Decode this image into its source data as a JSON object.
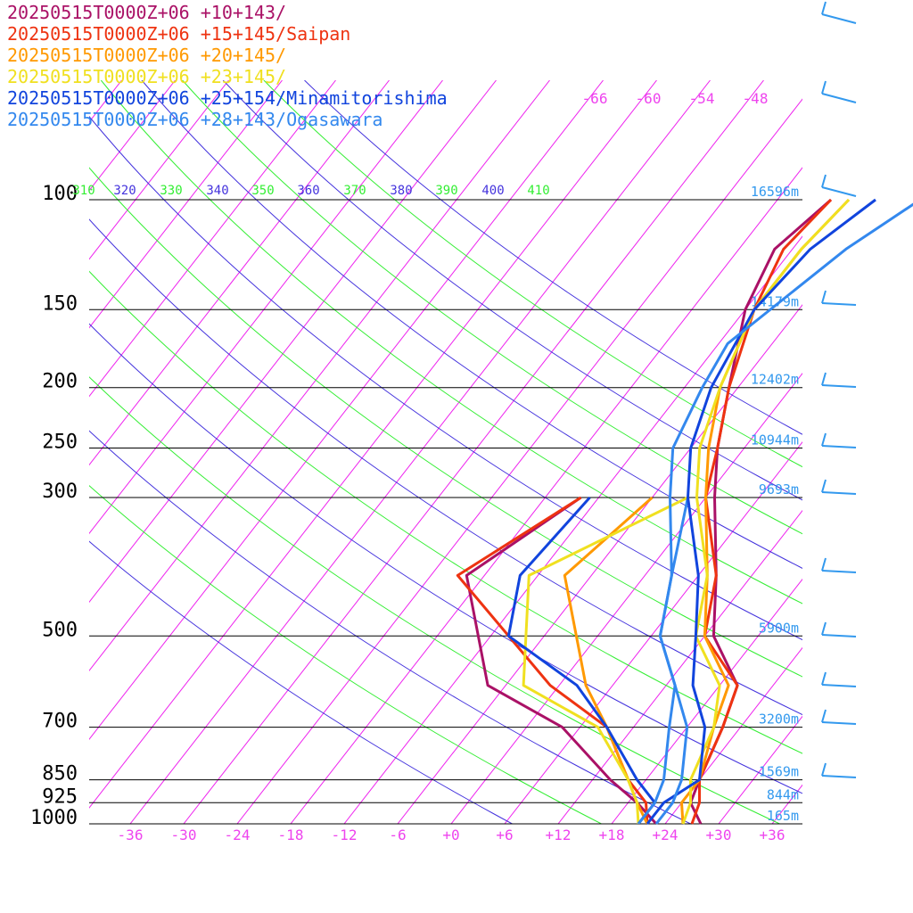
{
  "chart_data": {
    "type": "line",
    "chart_kind": "skew-T log-p sounding",
    "pressure_levels_hpa": [
      100,
      150,
      200,
      250,
      300,
      500,
      700,
      850,
      925,
      1000
    ],
    "pressure_labels": [
      "100",
      "150",
      "200",
      "250",
      "300",
      "500",
      "700",
      "850",
      "925",
      "1000"
    ],
    "height_labels": [
      {
        "p": 100,
        "label": "16596m"
      },
      {
        "p": 150,
        "label": "14179m"
      },
      {
        "p": 200,
        "label": "12402m"
      },
      {
        "p": 250,
        "label": "10944m"
      },
      {
        "p": 300,
        "label": "9693m"
      },
      {
        "p": 500,
        "label": "5900m"
      },
      {
        "p": 700,
        "label": "3200m"
      },
      {
        "p": 850,
        "label": "1569m"
      },
      {
        "p": 925,
        "label": "844m"
      },
      {
        "p": 1000,
        "label": "165m"
      }
    ],
    "temperature_ticks": [
      "-36",
      "-30",
      "-24",
      "-18",
      "-12",
      "-6",
      "+0",
      "+6",
      "+12",
      "+18",
      "+24",
      "+30",
      "+36"
    ],
    "temperature_tick_values": [
      -36,
      -30,
      -24,
      -18,
      -12,
      -6,
      0,
      6,
      12,
      18,
      24,
      30,
      36
    ],
    "isotherm_top_labels": [
      "-66",
      "-60",
      "-54",
      "-48"
    ],
    "theta_e_labels": [
      "310",
      "320",
      "330",
      "340",
      "350",
      "360",
      "370",
      "380",
      "390",
      "400",
      "410"
    ],
    "colors": {
      "isotherm": "#ee22ee",
      "theta_green": "#33ee33",
      "theta_blue": "#4433dd",
      "isobar": "#000000",
      "height_label": "#3399ee",
      "wind_barb": "#3399ee",
      "tick_label": "#ee44ee"
    },
    "series": [
      {
        "name": "20250515T0000Z+06 +10+143/",
        "color": "#aa1166",
        "temperature": [
          [
            -12,
            100
          ],
          [
            -14,
            120
          ],
          [
            -12,
            150
          ],
          [
            -7,
            200
          ],
          [
            -3,
            250
          ],
          [
            1,
            300
          ],
          [
            8,
            400
          ],
          [
            13,
            500
          ],
          [
            20,
            600
          ],
          [
            22,
            700
          ],
          [
            24,
            850
          ],
          [
            25,
            925
          ],
          [
            28,
            1000
          ]
        ],
        "dewpoint": [
          [
            -14,
            300
          ],
          [
            -20,
            400
          ],
          [
            -8,
            600
          ],
          [
            4,
            700
          ],
          [
            14,
            850
          ],
          [
            19,
            925
          ],
          [
            23,
            1000
          ]
        ]
      },
      {
        "name": "20250515T0000Z+06 +15+145/Saipan",
        "color": "#ee3311",
        "temperature": [
          [
            -12,
            100
          ],
          [
            -13,
            120
          ],
          [
            -11,
            150
          ],
          [
            -7,
            200
          ],
          [
            -3,
            250
          ],
          [
            0,
            300
          ],
          [
            8,
            400
          ],
          [
            12,
            500
          ],
          [
            20,
            600
          ],
          [
            22,
            700
          ],
          [
            24,
            850
          ],
          [
            26,
            925
          ],
          [
            27,
            1000
          ]
        ],
        "dewpoint": [
          [
            -14,
            300
          ],
          [
            -21,
            400
          ],
          [
            -1,
            600
          ],
          [
            9,
            700
          ],
          [
            16,
            850
          ],
          [
            20,
            925
          ],
          [
            22,
            1000
          ]
        ]
      },
      {
        "name": "20250515T0000Z+06 +20+145/",
        "color": "#ff9900",
        "temperature": [
          [
            -10,
            100
          ],
          [
            -11,
            120
          ],
          [
            -11,
            150
          ],
          [
            -8,
            200
          ],
          [
            -4,
            250
          ],
          [
            0,
            300
          ],
          [
            7,
            400
          ],
          [
            12,
            500
          ],
          [
            19,
            600
          ],
          [
            21,
            700
          ],
          [
            24,
            850
          ],
          [
            24,
            925
          ],
          [
            26,
            1000
          ]
        ],
        "dewpoint": [
          [
            -6,
            300
          ],
          [
            -9,
            400
          ],
          [
            3,
            600
          ],
          [
            9,
            700
          ],
          [
            16,
            850
          ],
          [
            19,
            925
          ],
          [
            22,
            1000
          ]
        ]
      },
      {
        "name": "20250515T0000Z+06 +23+145/",
        "color": "#f0e020",
        "temperature": [
          [
            -10,
            100
          ],
          [
            -11,
            120
          ],
          [
            -11,
            150
          ],
          [
            -8,
            200
          ],
          [
            -5,
            250
          ],
          [
            -1,
            300
          ],
          [
            7,
            400
          ],
          [
            11,
            500
          ],
          [
            18,
            600
          ],
          [
            21,
            700
          ],
          [
            23,
            850
          ],
          [
            25,
            925
          ],
          [
            26,
            1000
          ]
        ],
        "dewpoint": [
          [
            -2,
            300
          ],
          [
            -13,
            400
          ],
          [
            -4,
            600
          ],
          [
            8,
            700
          ],
          [
            16,
            850
          ],
          [
            19,
            925
          ],
          [
            21,
            1000
          ]
        ]
      },
      {
        "name": "20250515T0000Z+06 +25+154/Minamitorishima",
        "color": "#1144dd",
        "temperature": [
          [
            -7,
            100
          ],
          [
            -10,
            120
          ],
          [
            -11,
            150
          ],
          [
            -9,
            200
          ],
          [
            -6,
            250
          ],
          [
            -2,
            300
          ],
          [
            6,
            400
          ],
          [
            11,
            500
          ],
          [
            15,
            600
          ],
          [
            20,
            700
          ],
          [
            24,
            850
          ],
          [
            22,
            925
          ],
          [
            22,
            1000
          ]
        ],
        "dewpoint": [
          [
            -13,
            300
          ],
          [
            -14,
            400
          ],
          [
            -10,
            500
          ],
          [
            2,
            600
          ],
          [
            9,
            700
          ],
          [
            17,
            850
          ],
          [
            21,
            925
          ],
          [
            21,
            1000
          ]
        ]
      },
      {
        "name": "20250515T0000Z+06 +28+143/Ogasawara",
        "color": "#3388ee",
        "temperature": [
          [
            -2,
            100
          ],
          [
            -6,
            120
          ],
          [
            -11,
            170
          ],
          [
            -10,
            200
          ],
          [
            -8,
            250
          ],
          [
            -4,
            300
          ],
          [
            3,
            400
          ],
          [
            7,
            500
          ],
          [
            13,
            600
          ],
          [
            18,
            700
          ],
          [
            22,
            850
          ],
          [
            23,
            925
          ],
          [
            23,
            1000
          ]
        ],
        "dewpoint": [
          [
            -2,
            300
          ],
          [
            3,
            400
          ],
          [
            7,
            500
          ],
          [
            13,
            600
          ],
          [
            16,
            700
          ],
          [
            20,
            850
          ],
          [
            21,
            925
          ],
          [
            21,
            1000
          ]
        ]
      }
    ],
    "x_range_celsius": [
      -40,
      40
    ],
    "ylim_hpa": [
      1000,
      90
    ],
    "grid": true
  }
}
